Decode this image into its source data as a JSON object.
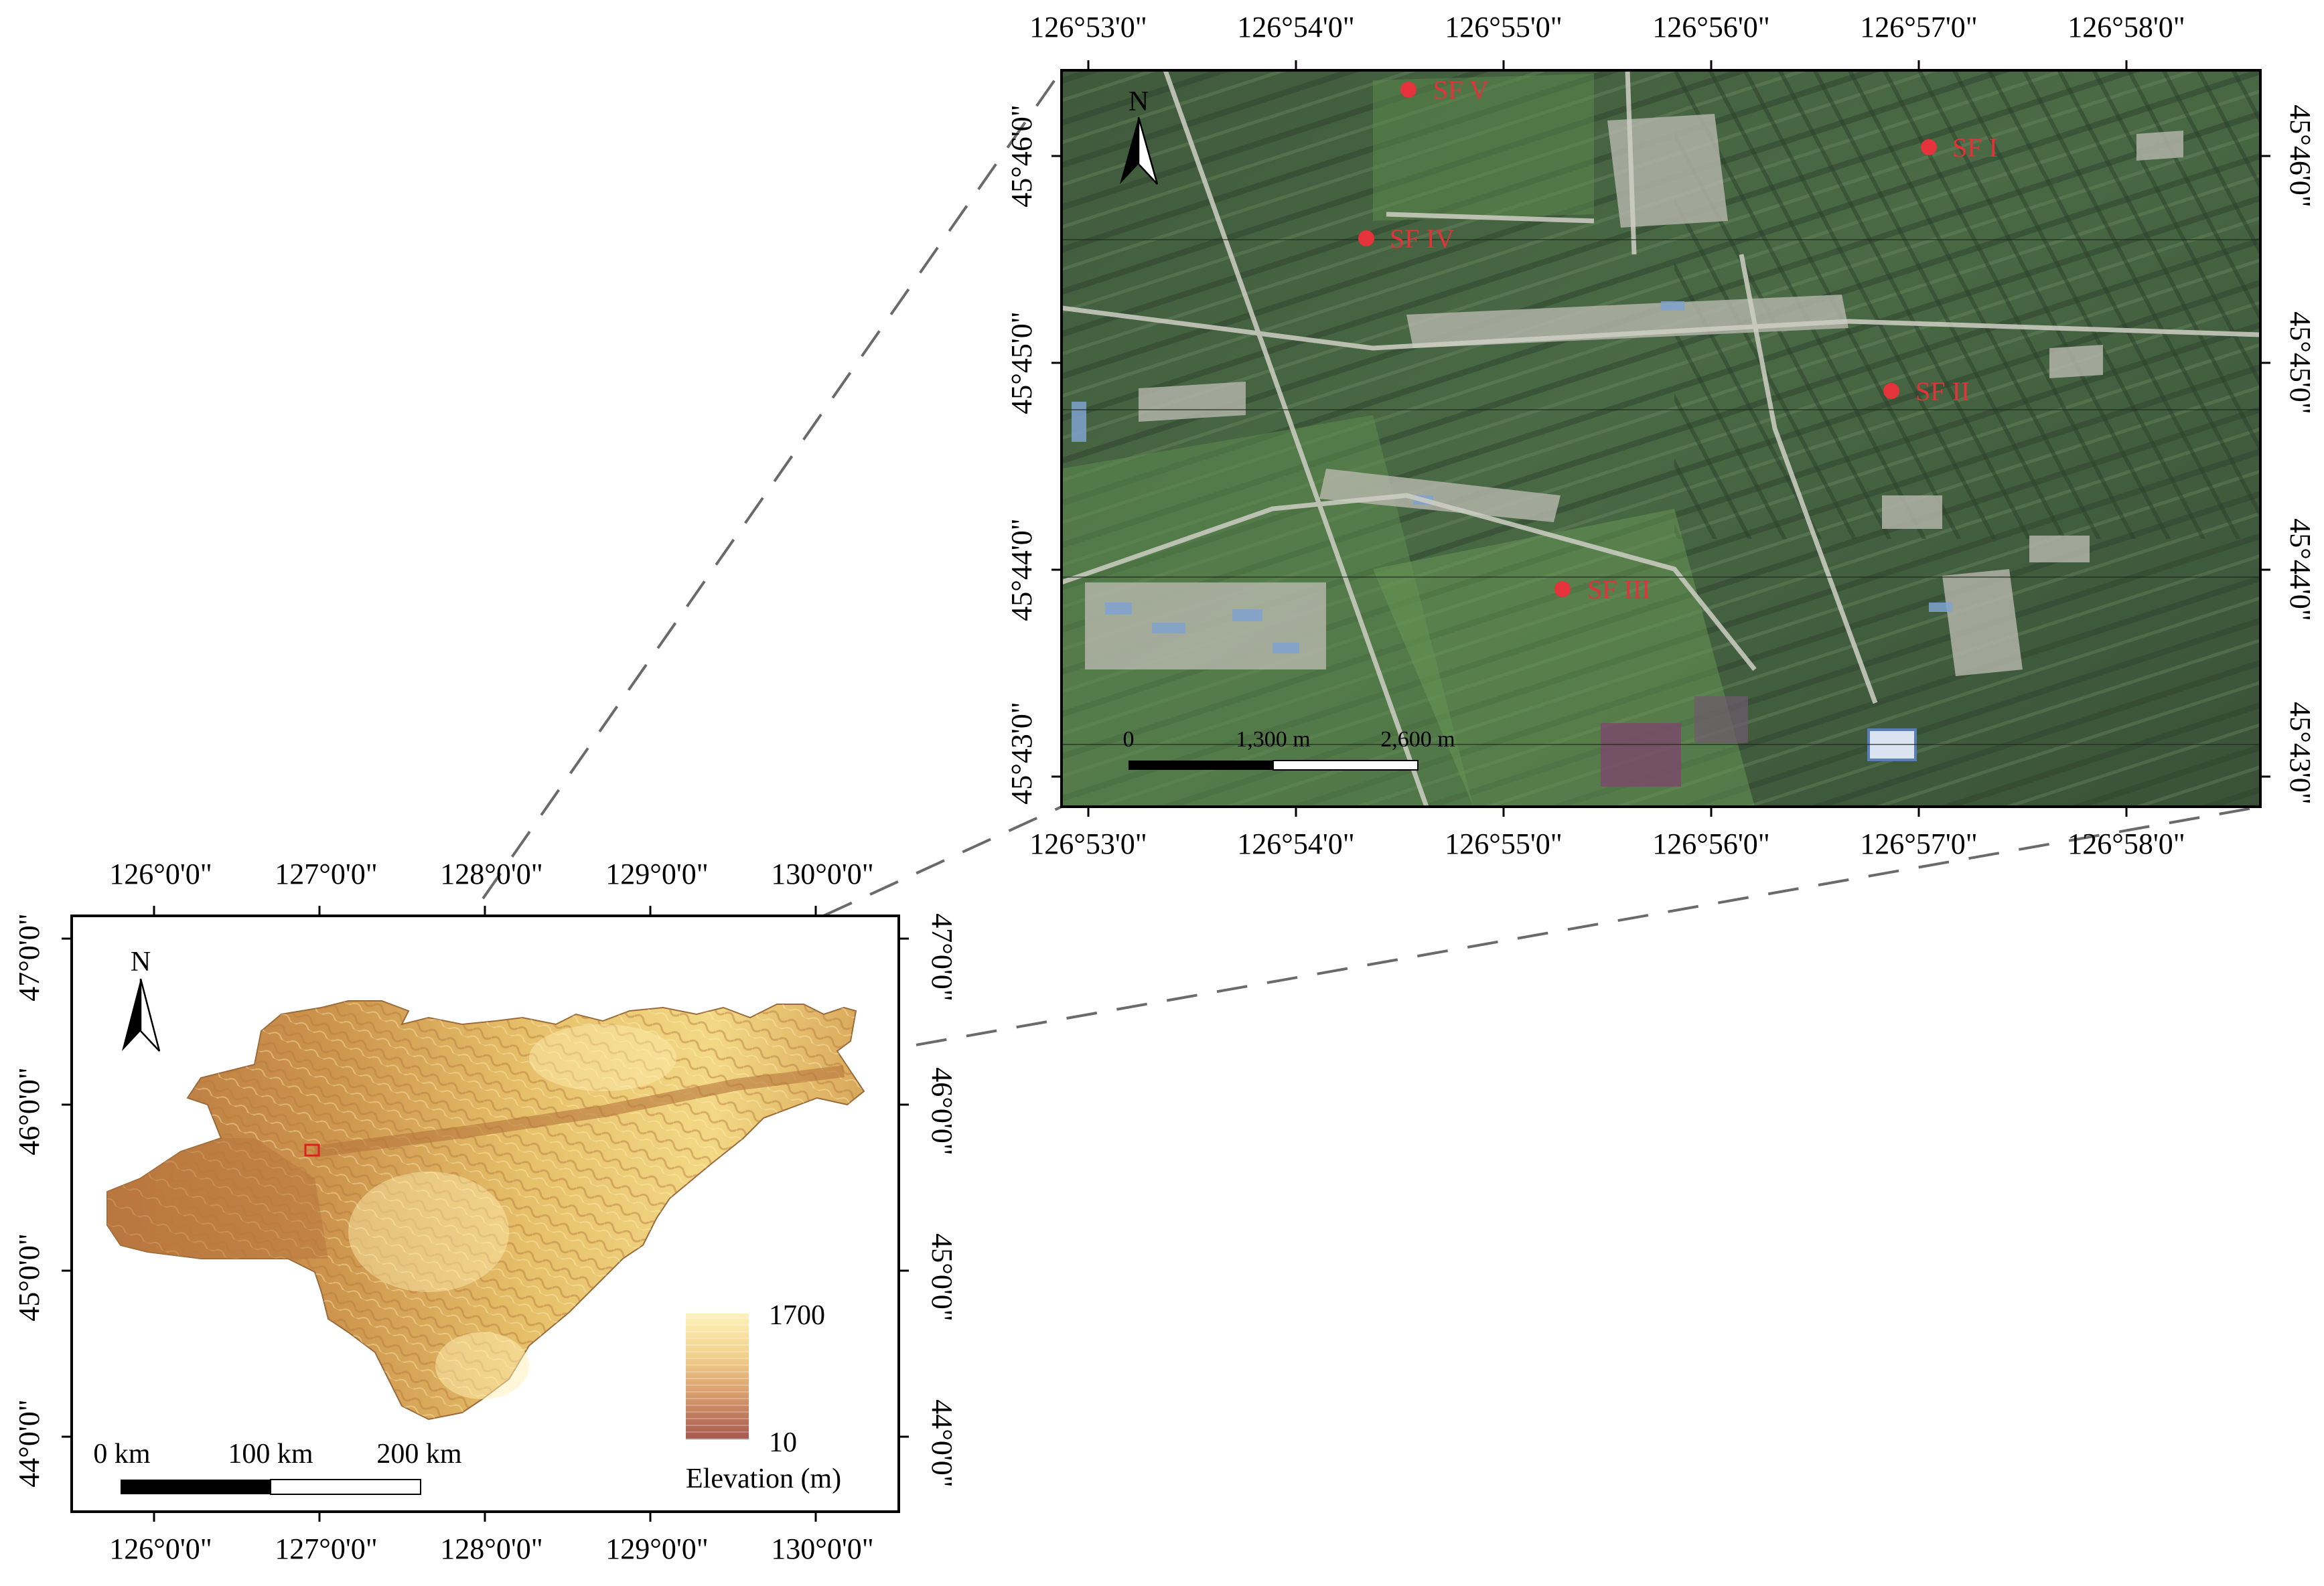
{
  "colors": {
    "site_marker": "#e5323b",
    "frame": "#000000",
    "connector": "#6a6a6a",
    "elevation_high": "#fff0b3",
    "elevation_low": "#a6574f"
  },
  "inset_map": {
    "top_lon_labels": [
      "126°53'0\"",
      "126°54'0\"",
      "126°55'0\"",
      "126°56'0\"",
      "126°57'0\"",
      "126°58'0\""
    ],
    "bottom_lon_labels": [
      "126°53'0\"",
      "126°54'0\"",
      "126°55'0\"",
      "126°56'0\"",
      "126°57'0\"",
      "126°58'0\""
    ],
    "left_lat_labels": [
      "45°46'0\"",
      "45°45'0\"",
      "45°44'0\"",
      "45°43'0\""
    ],
    "right_lat_labels": [
      "45°46'0\"",
      "45°45'0\"",
      "45°44'0\"",
      "45°43'0\""
    ],
    "north_label": "N",
    "scale_labels": [
      "0",
      "1,300 m",
      "2,600 m"
    ],
    "sites": [
      {
        "label": "SF V"
      },
      {
        "label": "SF I"
      },
      {
        "label": "SF IV"
      },
      {
        "label": "SF II"
      },
      {
        "label": "SF III"
      }
    ]
  },
  "regional_map": {
    "top_lon_labels": [
      "126°0'0\"",
      "127°0'0\"",
      "128°0'0\"",
      "129°0'0\"",
      "130°0'0\""
    ],
    "bottom_lon_labels": [
      "126°0'0\"",
      "127°0'0\"",
      "128°0'0\"",
      "129°0'0\"",
      "130°0'0\""
    ],
    "left_lat_labels": [
      "47°0'0\"",
      "46°0'0\"",
      "45°0'0\"",
      "44°0'0\""
    ],
    "right_lat_labels": [
      "47°0'0\"",
      "46°0'0\"",
      "45°0'0\"",
      "44°0'0\""
    ],
    "north_label": "N",
    "scale_labels": [
      "0 km",
      "100 km",
      "200 km"
    ],
    "legend": {
      "max_label": "1700",
      "min_label": "10",
      "title": "Elevation (m)"
    }
  }
}
